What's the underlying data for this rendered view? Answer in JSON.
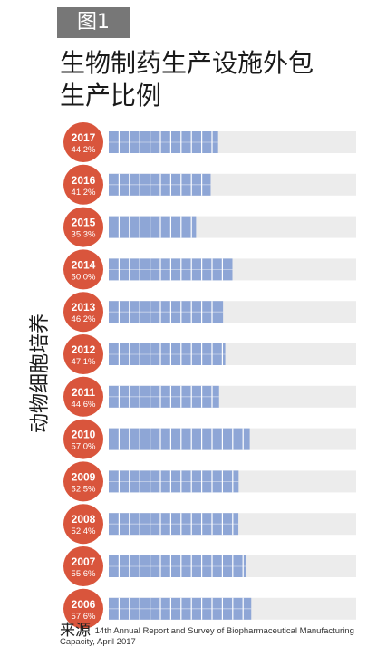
{
  "figure_label": "图1",
  "title_lines": [
    "生物制药生产设施外包",
    "生产比例"
  ],
  "side_label": "动物细胞培养",
  "source_label": "来源",
  "source_text": "14th Annual Report and Survey of Biopharmaceutical Manufacturing Capacity, April 2017",
  "colors": {
    "circle": "#d9553c",
    "bar_fill": "#8ea6d6",
    "bar_track": "#ececec",
    "segment_line": "#ffffff"
  },
  "chart_data": {
    "type": "bar",
    "orientation": "horizontal",
    "categories": [
      "2017",
      "2016",
      "2015",
      "2014",
      "2013",
      "2012",
      "2011",
      "2010",
      "2009",
      "2008",
      "2007",
      "2006"
    ],
    "values": [
      44.2,
      41.2,
      35.3,
      50.0,
      46.2,
      47.1,
      44.6,
      57.0,
      52.5,
      52.4,
      55.6,
      57.6
    ],
    "value_labels": [
      "44.2%",
      "41.2%",
      "35.3%",
      "50.0%",
      "46.2%",
      "47.1%",
      "44.6%",
      "57.0%",
      "52.5%",
      "52.4%",
      "55.6%",
      "57.6%"
    ],
    "xlim": [
      0,
      100
    ],
    "title": "生物制药生产设施外包生产比例",
    "ylabel": "动物细胞培养",
    "xlabel": ""
  }
}
